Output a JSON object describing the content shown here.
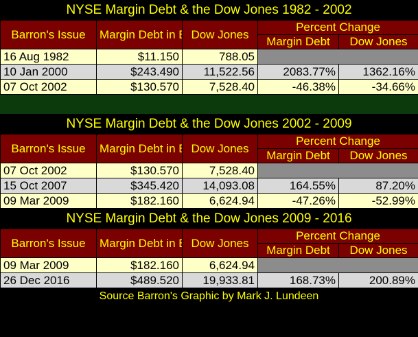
{
  "colors": {
    "title_text": "#ffff00",
    "header_bg": "#7b0000",
    "row_yellow": "#ffffc8",
    "row_gray": "#d9d9d9",
    "empty_cell": "#8c8c8c",
    "spacer_green": "#0d3a0d"
  },
  "sections": [
    {
      "title": "NYSE Margin Debt & the Dow Jones 1982 - 2002",
      "headers": {
        "issue": "Barron's Issue",
        "margin": "Margin Debt in Billions",
        "dow": "Dow Jones",
        "pct": "Percent Change",
        "pct_margin": "Margin Debt",
        "pct_dow": "Dow Jones"
      },
      "rows": [
        {
          "issue": "16 Aug 1982",
          "margin": "$11.150",
          "dow": "788.05",
          "pct_margin": "",
          "pct_dow": ""
        },
        {
          "issue": "10 Jan 2000",
          "margin": "$243.490",
          "dow": "11,522.56",
          "pct_margin": "2083.77%",
          "pct_dow": "1362.16%"
        },
        {
          "issue": "07 Oct 2002",
          "margin": "$130.570",
          "dow": "7,528.40",
          "pct_margin": "-46.38%",
          "pct_dow": "-34.66%"
        }
      ]
    },
    {
      "title": "NYSE Margin Debt & the Dow Jones 2002 - 2009",
      "headers": {
        "issue": "Barron's Issue",
        "margin": "Margin Debt in Billions",
        "dow": "Dow Jones",
        "pct": "Percent Change",
        "pct_margin": "Margin Debt",
        "pct_dow": "Dow Jones"
      },
      "rows": [
        {
          "issue": "07 Oct 2002",
          "margin": "$130.570",
          "dow": "7,528.40",
          "pct_margin": "",
          "pct_dow": ""
        },
        {
          "issue": "15 Oct 2007",
          "margin": "$345.420",
          "dow": "14,093.08",
          "pct_margin": "164.55%",
          "pct_dow": "87.20%"
        },
        {
          "issue": "09 Mar 2009",
          "margin": "$182.160",
          "dow": "6,624.94",
          "pct_margin": "-47.26%",
          "pct_dow": "-52.99%"
        }
      ]
    },
    {
      "title": "NYSE Margin Debt & the Dow Jones 2009 - 2016",
      "headers": {
        "issue": "Barron's Issue",
        "margin": "Margin Debt in Billions",
        "dow": "Dow Jones",
        "pct": "Percent Change",
        "pct_margin": "Margin Debt",
        "pct_dow": "Dow Jones"
      },
      "rows": [
        {
          "issue": "09 Mar 2009",
          "margin": "$182.160",
          "dow": "6,624.94",
          "pct_margin": "",
          "pct_dow": ""
        },
        {
          "issue": "26 Dec 2016",
          "margin": "$489.520",
          "dow": "19,933.81",
          "pct_margin": "168.73%",
          "pct_dow": "200.89%"
        }
      ]
    }
  ],
  "source": "Source Barron's  Graphic by Mark J. Lundeen"
}
